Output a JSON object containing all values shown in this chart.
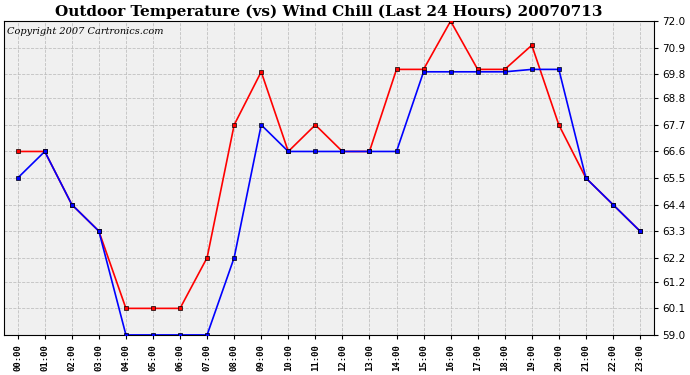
{
  "title": "Outdoor Temperature (vs) Wind Chill (Last 24 Hours) 20070713",
  "copyright_text": "Copyright 2007 Cartronics.com",
  "hours": [
    "00:00",
    "01:00",
    "02:00",
    "03:00",
    "04:00",
    "05:00",
    "06:00",
    "07:00",
    "08:00",
    "09:00",
    "10:00",
    "11:00",
    "12:00",
    "13:00",
    "14:00",
    "15:00",
    "16:00",
    "17:00",
    "18:00",
    "19:00",
    "20:00",
    "21:00",
    "22:00",
    "23:00"
  ],
  "red_data": [
    66.6,
    66.6,
    64.4,
    63.3,
    60.1,
    60.1,
    60.1,
    62.2,
    67.7,
    69.9,
    66.6,
    67.7,
    66.6,
    66.6,
    70.0,
    70.0,
    72.0,
    70.0,
    70.0,
    71.0,
    67.7,
    65.5,
    64.4,
    63.3
  ],
  "blue_data": [
    65.5,
    66.6,
    64.4,
    63.3,
    59.0,
    59.0,
    59.0,
    59.0,
    62.2,
    67.7,
    66.6,
    66.6,
    66.6,
    66.6,
    66.6,
    69.9,
    69.9,
    69.9,
    69.9,
    70.0,
    70.0,
    65.5,
    64.4,
    63.3
  ],
  "ylim": [
    59.0,
    72.0
  ],
  "yticks": [
    59.0,
    60.1,
    61.2,
    62.2,
    63.3,
    64.4,
    65.5,
    66.6,
    67.7,
    68.8,
    69.8,
    70.9,
    72.0
  ],
  "red_color": "#ff0000",
  "blue_color": "#0000ff",
  "bg_color": "#ffffff",
  "plot_bg_color": "#f0f0f0",
  "grid_color": "#bbbbbb",
  "title_fontsize": 11,
  "copyright_fontsize": 7,
  "marker": "s",
  "marker_size": 3,
  "line_width": 1.2,
  "figwidth": 6.9,
  "figheight": 3.75,
  "dpi": 100
}
